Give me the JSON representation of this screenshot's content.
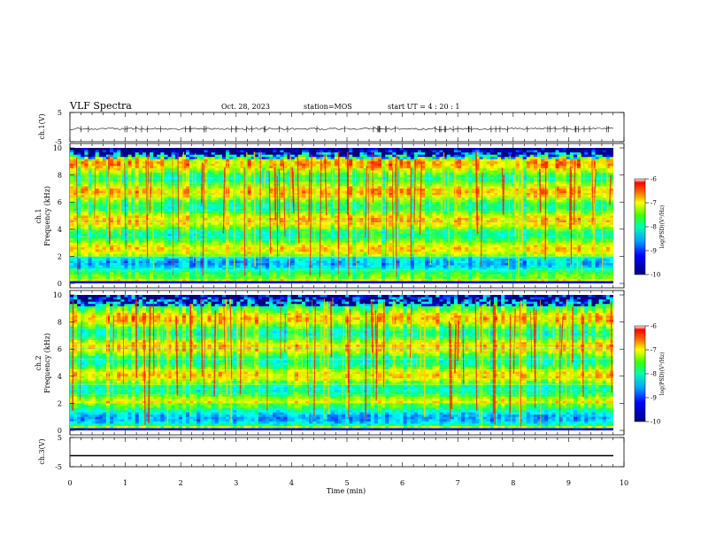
{
  "header": {
    "title": "VLF Spectra",
    "date": "Oct. 28, 2023",
    "station": "station=MOS",
    "start_ut": "start  UT =   4 : 20 : 1"
  },
  "chart_data": [
    {
      "type": "line",
      "panel": "ch1-waveform",
      "ylabel": "ch.1(V)",
      "ylim": [
        -5,
        5
      ],
      "ytick_labels": [
        "5",
        "-5"
      ],
      "x": [
        0,
        10
      ],
      "series": [
        {
          "values": [
            -0.6,
            -0.6
          ]
        }
      ]
    },
    {
      "type": "heatmap",
      "panel": "ch1-spectrogram",
      "ylabel_channel": "ch.1",
      "ylabel": "Frequency (kHz)",
      "ylim": [
        0,
        10
      ],
      "ytick_labels": [
        "0",
        "2",
        "4",
        "6",
        "8",
        "10"
      ],
      "colorbar": {
        "label": "log(PSD)(V²/Hz)",
        "range": [
          -10,
          -6
        ],
        "tick_labels": [
          "-6",
          "-7",
          "-8",
          "-9",
          "-10"
        ]
      }
    },
    {
      "type": "heatmap",
      "panel": "ch2-spectrogram",
      "ylabel_channel": "ch.2",
      "ylabel": "Frequency (kHz)",
      "ylim": [
        0,
        10
      ],
      "ytick_labels": [
        "0",
        "2",
        "4",
        "6",
        "8",
        "10"
      ],
      "colorbar": {
        "label": "log(PSD)(V²/Hz)",
        "range": [
          -10,
          -6
        ],
        "tick_labels": [
          "-6",
          "-7",
          "-8",
          "-9",
          "-10"
        ]
      }
    },
    {
      "type": "line",
      "panel": "ch3-waveform",
      "ylabel": "ch.3(V)",
      "ylim": [
        -5,
        5
      ],
      "ytick_labels": [
        "5",
        "-5"
      ],
      "x": [
        0,
        10
      ],
      "series": [
        {
          "values": [
            -1.2,
            -1.2
          ]
        }
      ]
    }
  ],
  "xaxis": {
    "label": "Time (min)",
    "xlim": [
      0,
      10
    ],
    "tick_labels": [
      "0",
      "1",
      "2",
      "3",
      "4",
      "5",
      "6",
      "7",
      "8",
      "9",
      "10"
    ]
  },
  "colors": {
    "colormap": [
      "#00007f",
      "#0000ff",
      "#007fff",
      "#00ffff",
      "#00ff7f",
      "#7fff00",
      "#ffff00",
      "#ff7f00",
      "#ff0000"
    ],
    "background_low": "#000000"
  }
}
